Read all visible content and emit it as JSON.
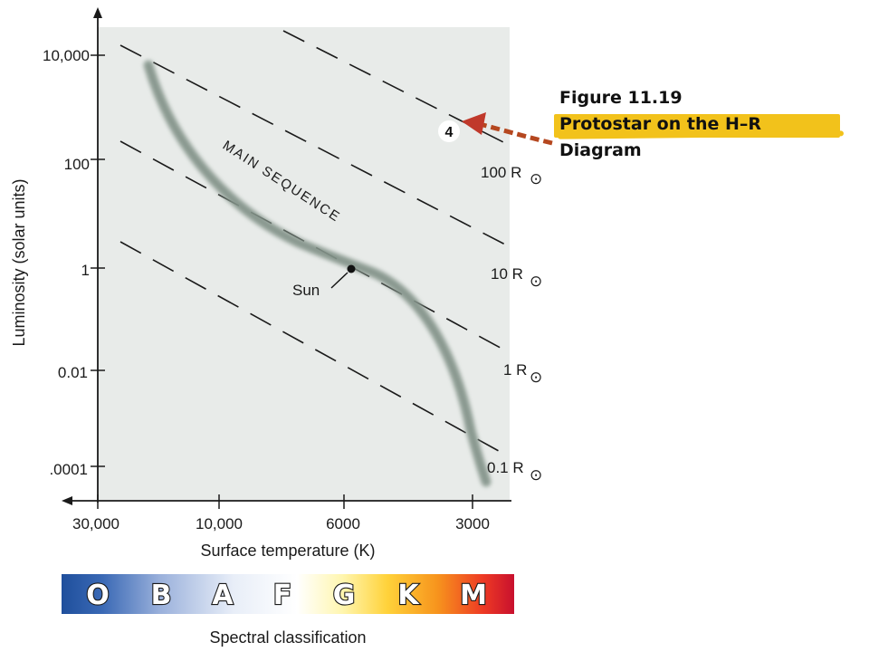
{
  "figure": {
    "caption_line1": "Figure 11.19",
    "caption_line2": "Protostar on the H–R",
    "caption_line3": "Diagram",
    "highlight_color": "#f2c21b"
  },
  "diagram": {
    "plot_background": "#e8ebe9",
    "y_axis_title": "Luminosity (solar units)",
    "x_axis_title": "Surface temperature (K)",
    "y_ticks": [
      "10,000",
      "100",
      "1",
      "0.01",
      ".0001"
    ],
    "x_ticks": [
      "30,000",
      "10,000",
      "6000",
      "3000"
    ],
    "radius_lines": [
      {
        "value": "100 R",
        "symbol": "⊙"
      },
      {
        "value": "10 R",
        "symbol": "⊙"
      },
      {
        "value": "1 R",
        "symbol": "⊙"
      },
      {
        "value": "0.1 R",
        "symbol": "⊙"
      }
    ],
    "main_sequence_label": "MAIN SEQUENCE",
    "sun_label": "Sun",
    "protostar_marker": "4",
    "arrow_color": "#c0392b",
    "spectral": {
      "classes": [
        "O",
        "B",
        "A",
        "F",
        "G",
        "K",
        "M"
      ],
      "title": "Spectral classification"
    }
  }
}
